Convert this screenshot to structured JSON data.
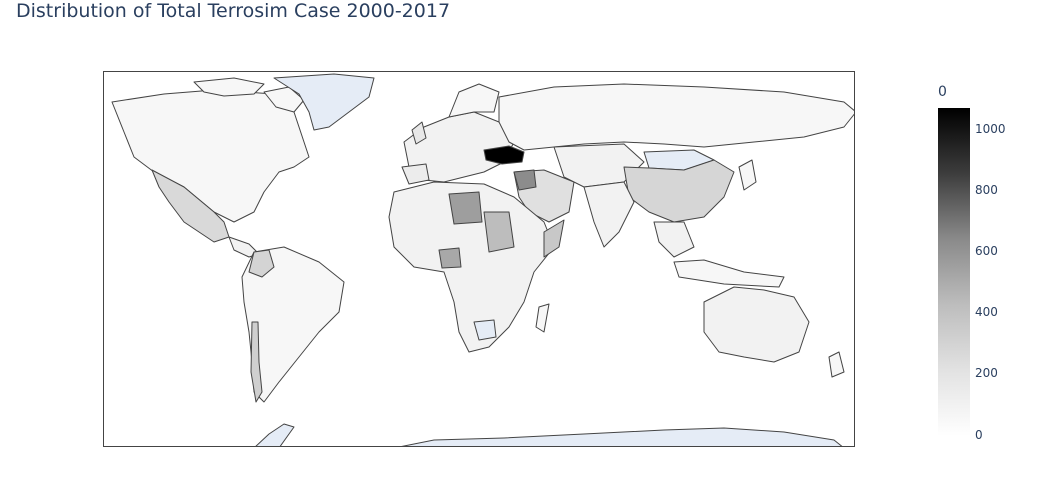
{
  "title": "Distribution of Total Terrosim Case 2000-2017",
  "colorbar": {
    "title": "0",
    "range": [
      0,
      1070
    ],
    "tick_labels": [
      "1000",
      "800",
      "600",
      "400",
      "200",
      "0"
    ],
    "colorscale": [
      "#ffffff",
      "#000000"
    ]
  },
  "map": {
    "projection": "equirectangular",
    "missing_color": "#e5ecf6",
    "highlights": {
      "ukraine_color": "#000000",
      "libya_color": "#9e9e9e",
      "china_color": "#d6d6d6",
      "sudan_color": "#bdbdbd",
      "greenland_color": "#e5ecf6",
      "mongolia_color": "#e5ecf6",
      "antarctica_color": "#e5ecf6",
      "default_land_color": "#f7f7f7"
    }
  }
}
